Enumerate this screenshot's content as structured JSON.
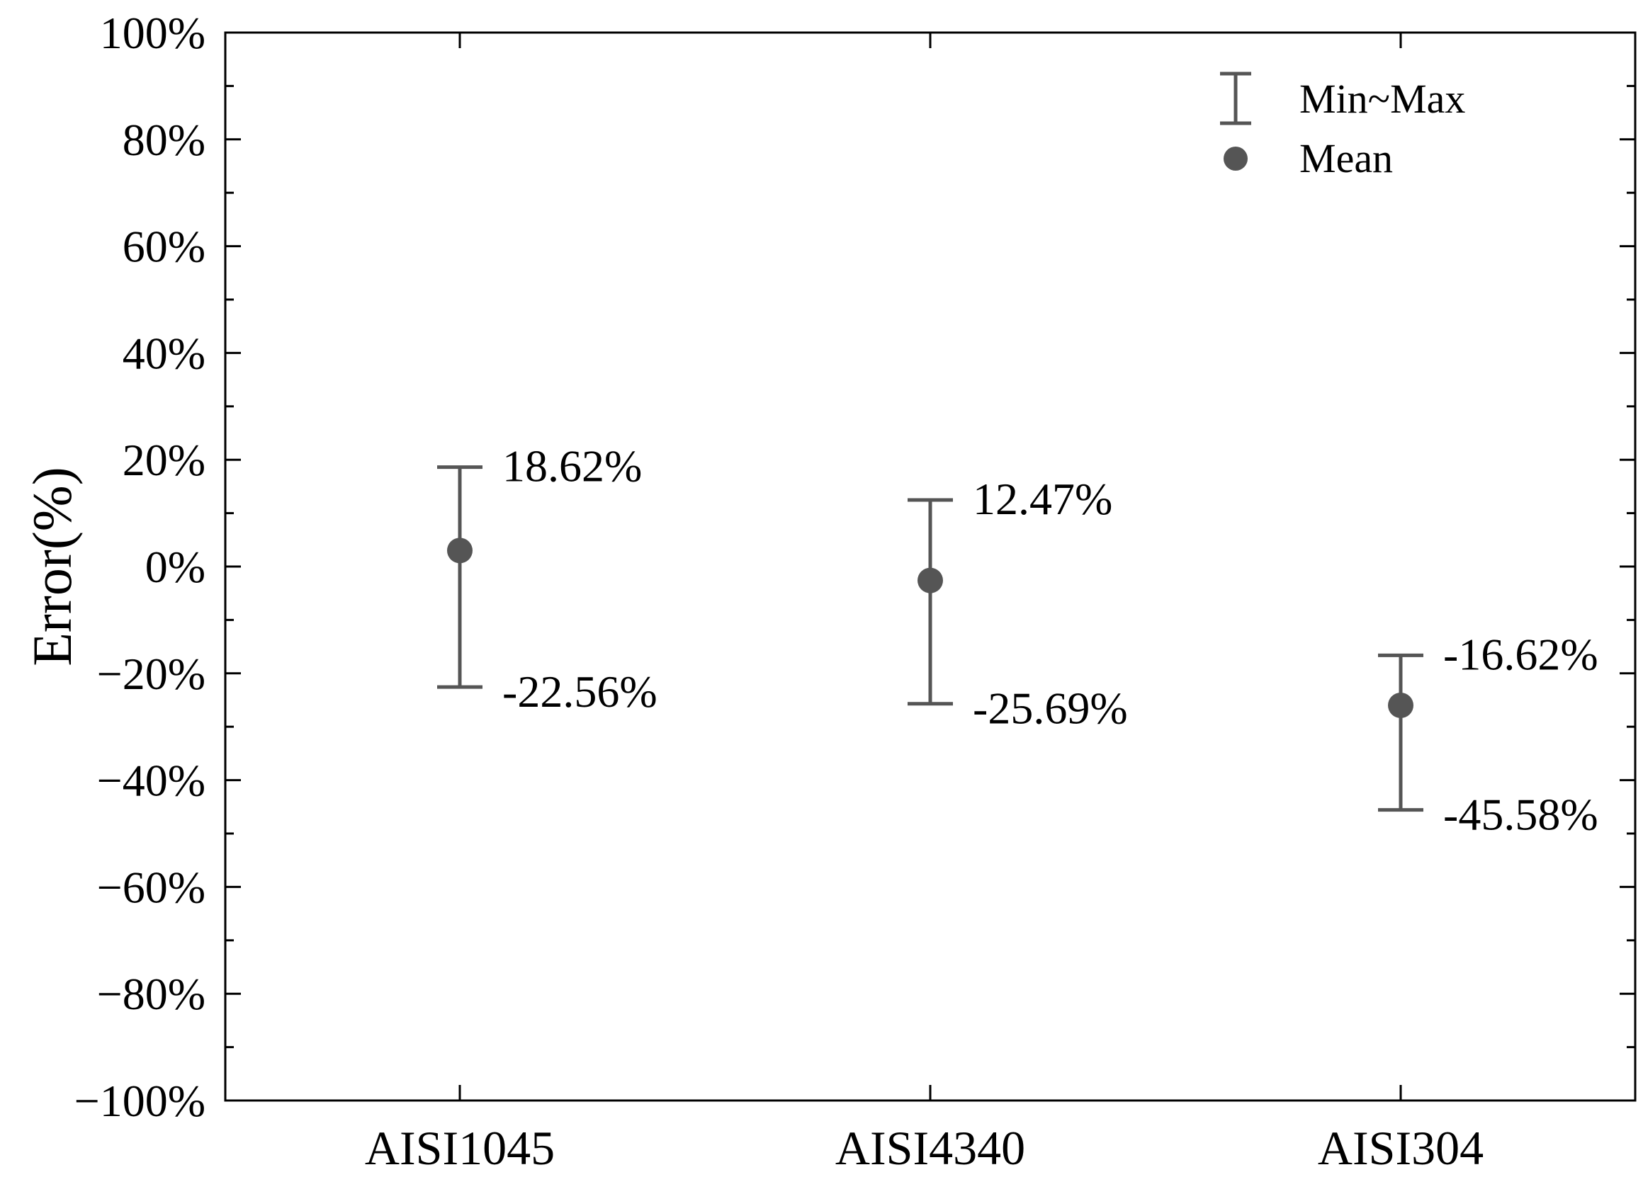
{
  "chart_data": {
    "type": "errorbar",
    "title": "",
    "xlabel": "",
    "ylabel": "Error(%)",
    "ylim": [
      -100,
      100
    ],
    "yticks": [
      100,
      80,
      60,
      40,
      20,
      0,
      -20,
      -40,
      -60,
      -80,
      -100
    ],
    "ytick_labels": [
      "100%",
      "80%",
      "60%",
      "40%",
      "20%",
      "0%",
      "−20%",
      "−40%",
      "−60%",
      "−80%",
      "−100%"
    ],
    "categories": [
      "AISI1045",
      "AISI4340",
      "AISI304"
    ],
    "series": [
      {
        "name": "Min~Max",
        "kind": "range",
        "min": [
          -22.56,
          -25.69,
          -45.58
        ],
        "max": [
          18.62,
          12.47,
          -16.62
        ]
      },
      {
        "name": "Mean",
        "kind": "point",
        "values": [
          3.0,
          -2.6,
          -26.0
        ]
      }
    ],
    "data_labels": {
      "max": [
        "18.62%",
        "12.47%",
        "-16.62%"
      ],
      "min": [
        "-22.56%",
        "-25.69%",
        "-45.58%"
      ]
    },
    "legend": {
      "placement": "top-right",
      "entries": [
        "Min~Max",
        "Mean"
      ]
    },
    "grid": false,
    "color": "#555555"
  }
}
